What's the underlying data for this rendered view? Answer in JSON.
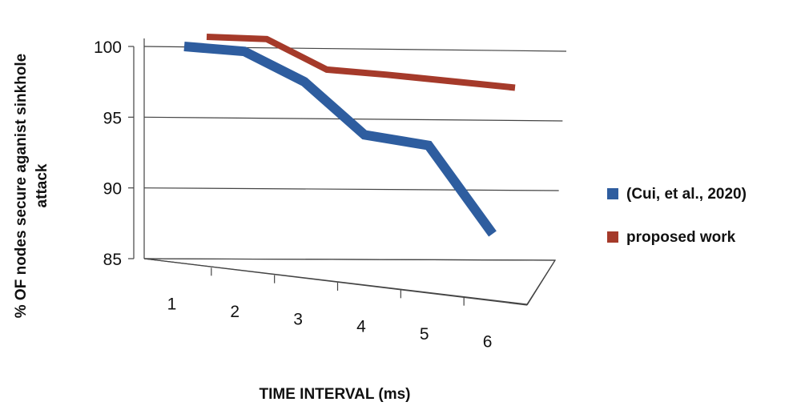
{
  "chart_data": {
    "type": "line",
    "title": "",
    "xlabel": "TIME INTERVAL (ms)",
    "ylabel_lines": [
      "% OF nodes secure aganist sinkhole",
      "attack"
    ],
    "categories": [
      "1",
      "2",
      "3",
      "4",
      "5",
      "6"
    ],
    "y_ticks": [
      "85",
      "90",
      "95",
      "100"
    ],
    "ylim": [
      85,
      100
    ],
    "grid": true,
    "legend_position": "right",
    "series": [
      {
        "name": "(Cui, et al., 2020)",
        "color": "#2e5d9f",
        "values": [
          100,
          99.9,
          98,
          94.5,
          94,
          88
        ]
      },
      {
        "name": "proposed work",
        "color": "#a53a2a",
        "values": [
          100,
          100,
          98,
          97.8,
          97.5,
          97.2
        ]
      }
    ]
  }
}
